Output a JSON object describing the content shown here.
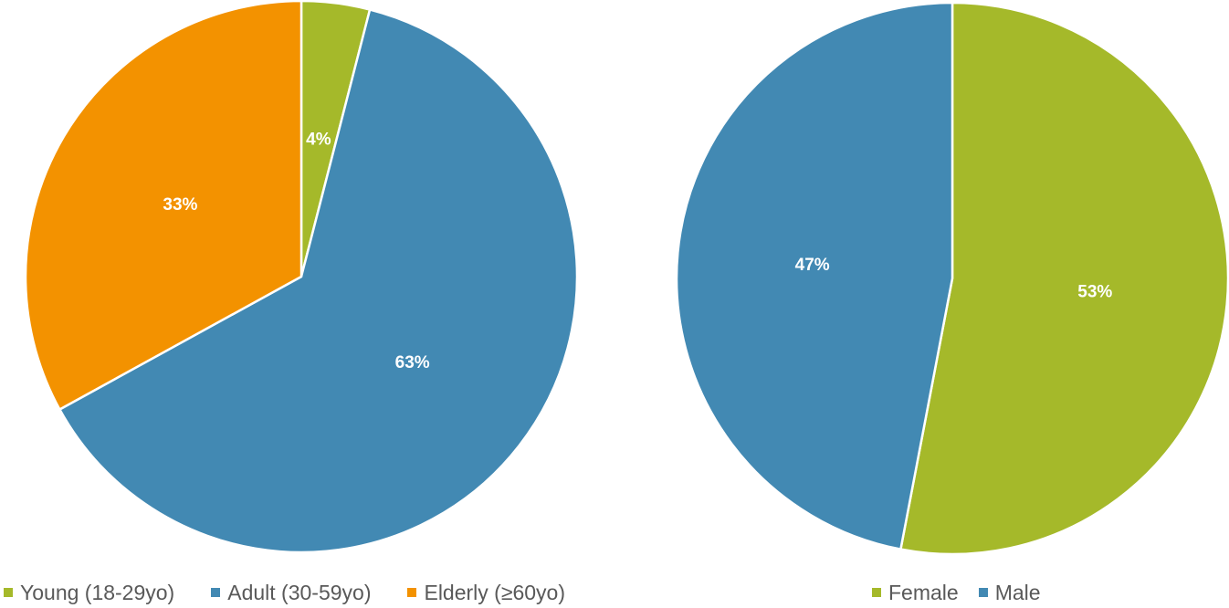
{
  "chart_data": [
    {
      "type": "pie",
      "categories": [
        "Young (18-29yo)",
        "Adult (30-59yo)",
        "Elderly (≥60yo)"
      ],
      "values": [
        4,
        63,
        33
      ],
      "labels": [
        "4%",
        "63%",
        "33%"
      ],
      "colors": [
        "#A5B92A",
        "#4289B3",
        "#F39200"
      ],
      "legend_position": "bottom"
    },
    {
      "type": "pie",
      "categories": [
        "Female",
        "Male"
      ],
      "values": [
        53,
        47
      ],
      "labels": [
        "53%",
        "47%"
      ],
      "colors": [
        "#A5B92A",
        "#4289B3"
      ],
      "legend_position": "bottom"
    }
  ]
}
